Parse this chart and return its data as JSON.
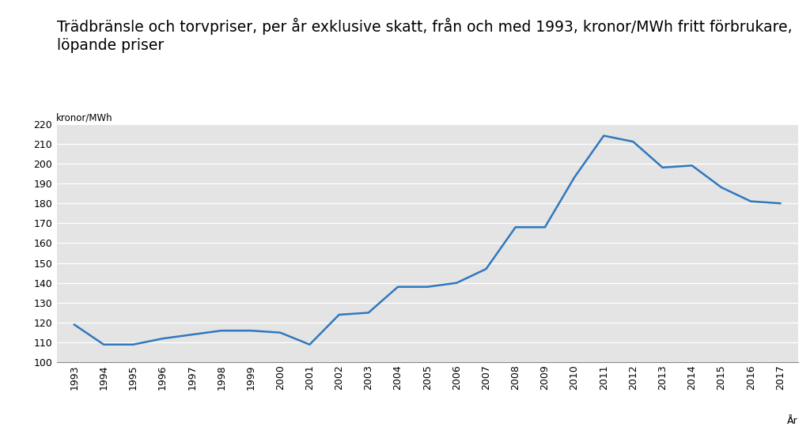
{
  "title_line1": "Trädbränsle och torvpriser, per år exklusive skatt, från och med 1993, kronor/MWh fritt förbrukare,",
  "title_line2": "löpande priser",
  "ylabel": "kronor/MWh",
  "xlabel": "År",
  "years": [
    1993,
    1994,
    1995,
    1996,
    1997,
    1998,
    1999,
    2000,
    2001,
    2002,
    2003,
    2004,
    2005,
    2006,
    2007,
    2008,
    2009,
    2010,
    2011,
    2012,
    2013,
    2014,
    2015,
    2016,
    2017
  ],
  "values": [
    119,
    109,
    109,
    112,
    114,
    116,
    116,
    115,
    109,
    124,
    125,
    138,
    138,
    140,
    147,
    168,
    168,
    193,
    214,
    211,
    198,
    199,
    188,
    181,
    180
  ],
  "line_color": "#3078BE",
  "bg_color": "#E4E4E4",
  "fig_bg_color": "#FFFFFF",
  "ylim": [
    100,
    220
  ],
  "yticks": [
    100,
    110,
    120,
    130,
    140,
    150,
    160,
    170,
    180,
    190,
    200,
    210,
    220
  ],
  "grid_color": "#FFFFFF",
  "title_fontsize": 13.5,
  "ylabel_fontsize": 8.5,
  "xlabel_fontsize": 9,
  "tick_fontsize": 9,
  "line_width": 1.8
}
